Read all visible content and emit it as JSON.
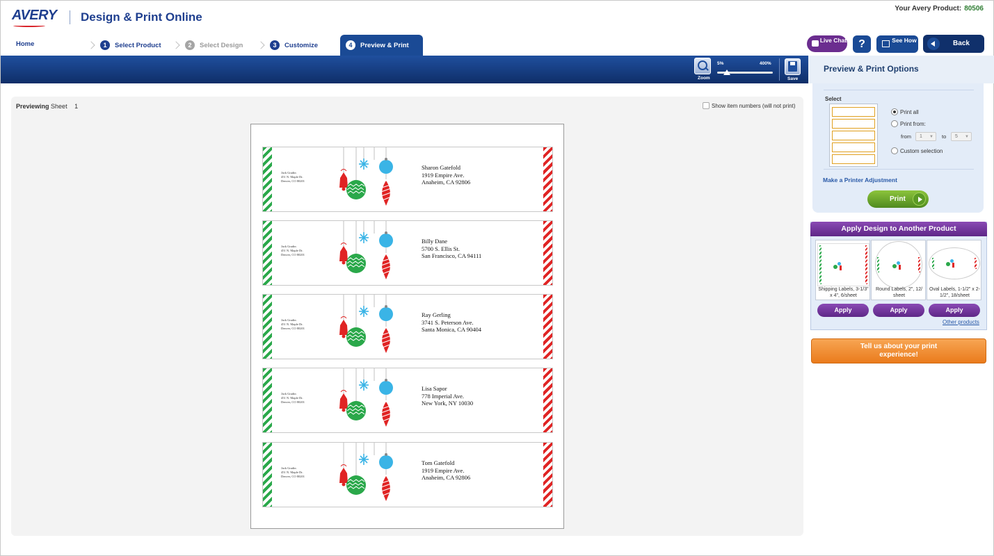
{
  "header": {
    "logo": "AVERY",
    "app_title": "Design & Print Online",
    "product_label": "Your Avery Product:",
    "product_number": "80506"
  },
  "steps": {
    "home": "Home",
    "items": [
      {
        "num": "1",
        "label": "Select Product"
      },
      {
        "num": "2",
        "label": "Select Design"
      },
      {
        "num": "3",
        "label": "Customize"
      },
      {
        "num": "4",
        "label": "Preview & Print"
      }
    ]
  },
  "top_buttons": {
    "chat": "Live Chat",
    "help": "?",
    "see_how": "See How",
    "back": "Back"
  },
  "toolbar": {
    "zoom_label": "Zoom",
    "zoom_min": "5%",
    "zoom_max": "400%",
    "zoom_level": 0.18,
    "save_label": "Save"
  },
  "preview": {
    "previewing": "Previewing",
    "sheet_word": "Sheet",
    "sheet_number": "1",
    "show_numbers": "Show item numbers (will not print)"
  },
  "labels": [
    {
      "return": [
        "Jack Gradin",
        "451 N. Maple Dr.",
        "Denver, CO 80201"
      ],
      "recipient": [
        "Sharon Gatefold",
        "1919 Empire Ave.",
        "Anaheim, CA 92806"
      ]
    },
    {
      "return": [
        "Jack Gradin",
        "451 N. Maple Dr.",
        "Denver, CO 80201"
      ],
      "recipient": [
        "Billy Dane",
        "5700 S. Ellis St.",
        "San Francisco, CA 94111"
      ]
    },
    {
      "return": [
        "Jack Gradin",
        "451 N. Maple Dr.",
        "Denver, CO 80201"
      ],
      "recipient": [
        "Ray Gerling",
        "3741 S. Peterson Ave.",
        "Santa Monica, CA 90404"
      ]
    },
    {
      "return": [
        "Jack Gradin",
        "451 N. Maple Dr.",
        "Denver, CO 80201"
      ],
      "recipient": [
        "Lisa Sapor",
        "778 Imperial Ave.",
        "New York, NY 10030"
      ]
    },
    {
      "return": [
        "Jack Gradin",
        "451 N. Maple Dr.",
        "Denver, CO 80201"
      ],
      "recipient": [
        "Tom Gatefold",
        "1919 Empire Ave.",
        "Anaheim, CA 92806"
      ]
    }
  ],
  "print_options": {
    "title": "Preview & Print Options",
    "select_label": "Select",
    "print_all": "Print all",
    "print_from": "Print from:",
    "from_label": "from",
    "from_value": "1",
    "to_label": "to",
    "to_value": "5",
    "custom": "Custom selection",
    "printer_adjust": "Make a Printer Adjustment",
    "print_button": "Print"
  },
  "apply_panel": {
    "title": "Apply Design to Another Product",
    "products": [
      {
        "name": "Shipping Labels, 3-1/3\" x 4\", 6/sheet",
        "apply": "Apply"
      },
      {
        "name": "Round Labels, 2\", 12/ sheet",
        "apply": "Apply"
      },
      {
        "name": "Oval Labels, 1-1/2\" x 2-1/2\", 18/sheet",
        "apply": "Apply"
      }
    ],
    "other_products": "Other products"
  },
  "feedback": {
    "text": "Tell us about your print experience!"
  },
  "colors": {
    "brand_blue": "#1f3f8f",
    "toolbar_blue": "#1a4a95",
    "purple": "#6b2d8f",
    "print_green": "#6aa232",
    "feedback_orange": "#f08a2a",
    "stripe_green": "#2aa84a",
    "stripe_red": "#e02424",
    "ornament_blue": "#3ab4e6"
  }
}
